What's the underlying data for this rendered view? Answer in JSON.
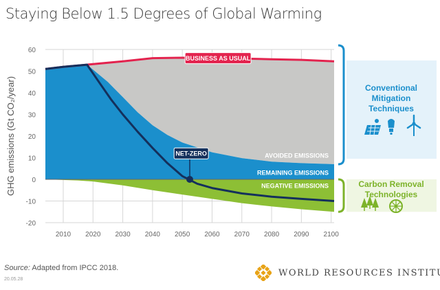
{
  "title": "Staying Below 1.5 Degrees of Global Warming",
  "source_label": "Source:",
  "source_text": " Adapted from IPCC 2018.",
  "date_stamp": "20.05.28",
  "org_name": "WORLD RESOURCES INSTITUTE",
  "side_labels": {
    "conventional": [
      "Conventional",
      "Mitigation",
      "Techniques"
    ],
    "removal": [
      "Carbon Removal",
      "Technologies"
    ],
    "conventional_icons": [
      "solar-panel-icon",
      "light-bulb-icon",
      "wind-turbine-icon"
    ],
    "removal_icons": [
      "forest-icon",
      "bioenergy-icon"
    ]
  },
  "colors": {
    "bau_line": "#e3234e",
    "avoided_area": "#c8c8c6",
    "remaining_area": "#1b8fcc",
    "negative_area": "#8dbf35",
    "netzero_line": "#14305c",
    "bracket_blue": "#1b8fcc",
    "bracket_green": "#7db32a",
    "grid": "#d6d6d6",
    "logo": "#e8a317"
  },
  "chart_data": {
    "type": "area",
    "title": "",
    "ylabel": "GHG emissions (Gt CO₂/year)",
    "xlabel": "",
    "xlim": [
      2004,
      2101
    ],
    "ylim": [
      -20,
      60
    ],
    "xticks": [
      "2010",
      "2020",
      "2030",
      "2040",
      "2050",
      "2060",
      "2070",
      "2080",
      "2090",
      "2100"
    ],
    "yticks": [
      "60",
      "50",
      "40",
      "30",
      "20",
      "10",
      "0",
      "-10",
      "-20"
    ],
    "grid": true,
    "series": [
      {
        "name": "BUSINESS AS USUAL",
        "kind": "line",
        "points": [
          [
            2004,
            51
          ],
          [
            2010,
            52
          ],
          [
            2018,
            53
          ],
          [
            2030,
            54.5
          ],
          [
            2040,
            56
          ],
          [
            2050,
            56.2
          ],
          [
            2060,
            56
          ],
          [
            2070,
            55.8
          ],
          [
            2080,
            55.5
          ],
          [
            2090,
            55.2
          ],
          [
            2101,
            54.5
          ]
        ]
      },
      {
        "name": "NET-ZERO",
        "kind": "line",
        "points": [
          [
            2004,
            51
          ],
          [
            2010,
            52
          ],
          [
            2018,
            53
          ],
          [
            2022,
            45
          ],
          [
            2026,
            37
          ],
          [
            2030,
            30
          ],
          [
            2035,
            22
          ],
          [
            2040,
            14.5
          ],
          [
            2045,
            7.5
          ],
          [
            2050,
            1.5
          ],
          [
            2055,
            -2
          ],
          [
            2060,
            -4
          ],
          [
            2070,
            -6.5
          ],
          [
            2080,
            -8
          ],
          [
            2090,
            -9
          ],
          [
            2101,
            -10
          ]
        ]
      },
      {
        "name": "REMAINING EMISSIONS",
        "kind": "area",
        "points": [
          [
            2004,
            51
          ],
          [
            2010,
            52
          ],
          [
            2018,
            53
          ],
          [
            2025,
            45
          ],
          [
            2030,
            38
          ],
          [
            2035,
            31
          ],
          [
            2040,
            25
          ],
          [
            2045,
            20.5
          ],
          [
            2050,
            17
          ],
          [
            2060,
            12.5
          ],
          [
            2070,
            9.8
          ],
          [
            2080,
            8.2
          ],
          [
            2090,
            7.5
          ],
          [
            2101,
            7
          ]
        ]
      },
      {
        "name": "NEGATIVE EMISSIONS",
        "kind": "area",
        "points": [
          [
            2004,
            0
          ],
          [
            2015,
            -0.5
          ],
          [
            2020,
            -1
          ],
          [
            2030,
            -2.8
          ],
          [
            2040,
            -5
          ],
          [
            2050,
            -7
          ],
          [
            2060,
            -9
          ],
          [
            2070,
            -11
          ],
          [
            2080,
            -12.5
          ],
          [
            2090,
            -13.8
          ],
          [
            2101,
            -15
          ]
        ]
      },
      {
        "name": "AVOIDED EMISSIONS",
        "kind": "area",
        "points": []
      }
    ],
    "annotations": [
      {
        "text": "BUSINESS AS USUAL",
        "x": 2062,
        "y": 56
      },
      {
        "text": "AVOIDED EMISSIONS",
        "x": 2101,
        "y": 11
      },
      {
        "text": "REMAINING EMISSIONS",
        "x": 2101,
        "y": 3
      },
      {
        "text": "NEGATIVE EMISSIONS",
        "x": 2101,
        "y": -3
      },
      {
        "text": "NET-ZERO",
        "x": 2053,
        "y": 12,
        "marker": [
          2052.5,
          0
        ]
      }
    ]
  }
}
